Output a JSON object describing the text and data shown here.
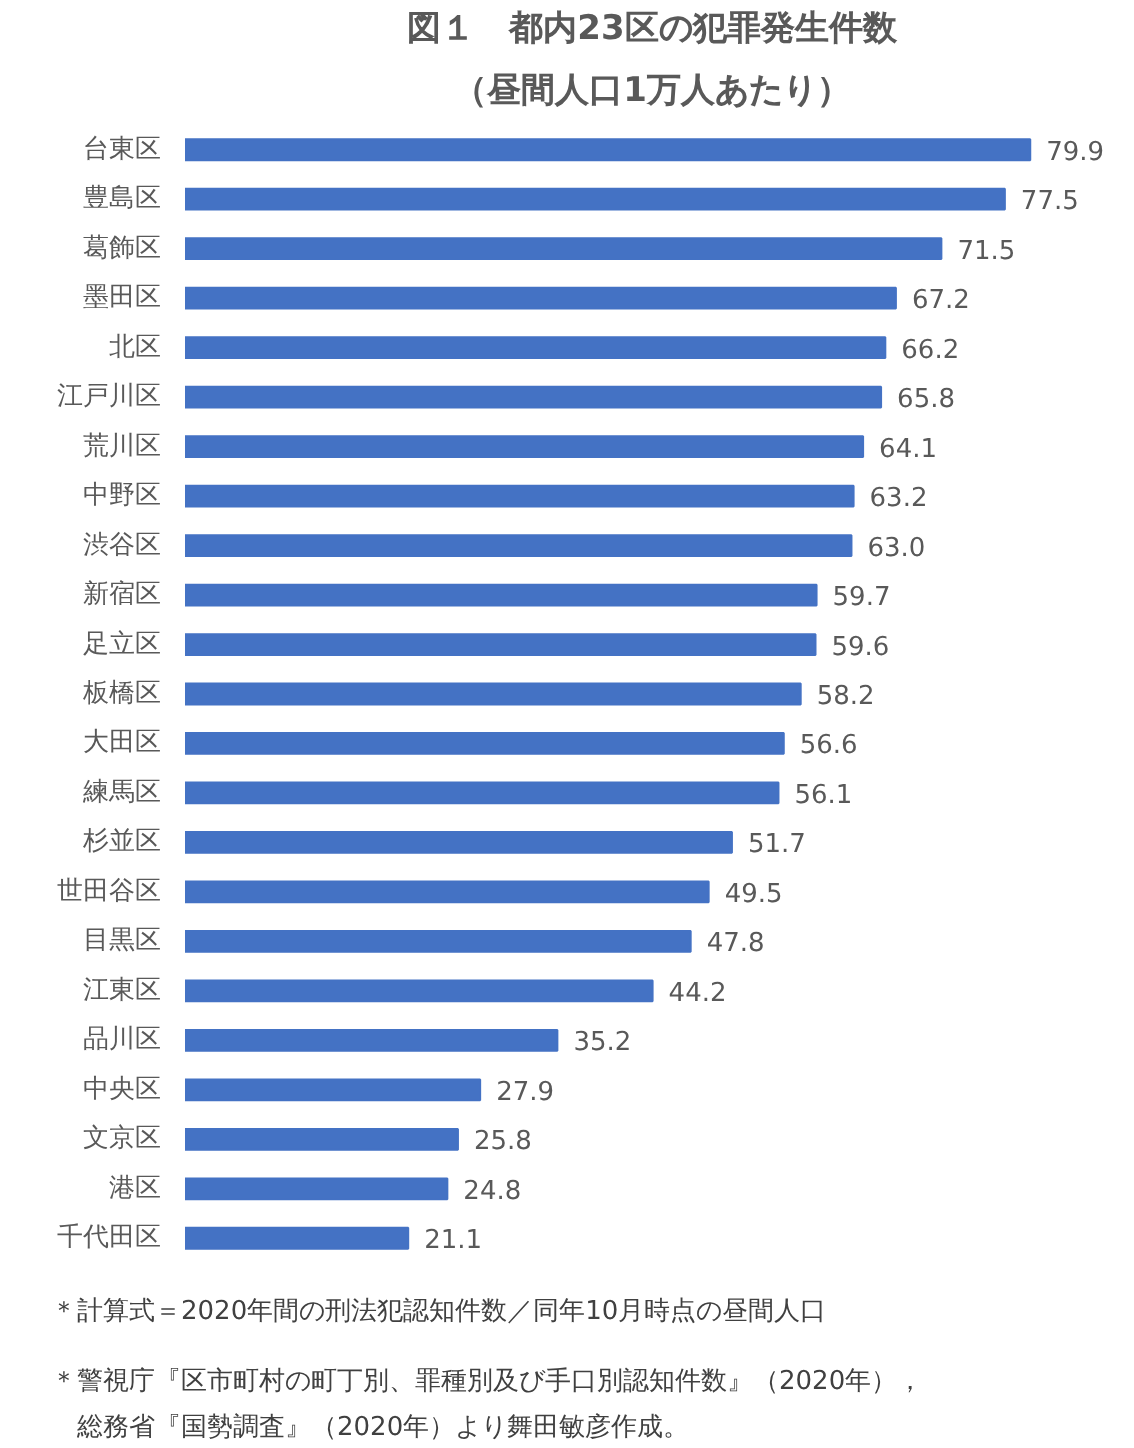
{
  "chart_data": {
    "type": "bar",
    "orientation": "horizontal",
    "title": "図１　都内23区の犯罪発生件数",
    "subtitle": "（昼間人口1万人あたり）",
    "categories": [
      "台東区",
      "豊島区",
      "葛飾区",
      "墨田区",
      "北区",
      "江戸川区",
      "荒川区",
      "中野区",
      "渋谷区",
      "新宿区",
      "足立区",
      "板橋区",
      "大田区",
      "練馬区",
      "杉並区",
      "世田谷区",
      "目黒区",
      "江東区",
      "品川区",
      "中央区",
      "文京区",
      "港区",
      "千代田区"
    ],
    "values": [
      79.9,
      77.5,
      71.5,
      67.2,
      66.2,
      65.8,
      64.1,
      63.2,
      63.0,
      59.7,
      59.6,
      58.2,
      56.6,
      56.1,
      51.7,
      49.5,
      47.8,
      44.2,
      35.2,
      27.9,
      25.8,
      24.8,
      21.1
    ],
    "value_labels": [
      "79.9",
      "77.5",
      "71.5",
      "67.2",
      "66.2",
      "65.8",
      "64.1",
      "63.2",
      "63.0",
      "59.7",
      "59.6",
      "58.2",
      "56.6",
      "56.1",
      "51.7",
      "49.5",
      "47.8",
      "44.2",
      "35.2",
      "27.9",
      "25.8",
      "24.8",
      "21.1"
    ],
    "color": "#4472c4",
    "tick_labels": "y",
    "annotations": [
      "＊計算式＝2020年間の刑法犯認知件数／同年10月時点の昼間人口",
      "＊警視庁『区市町村の町丁別、罪種別及び手口別認知件数』（2020年），総務省『国勢調査』（2020年）より舞田敏彦作成。"
    ]
  }
}
